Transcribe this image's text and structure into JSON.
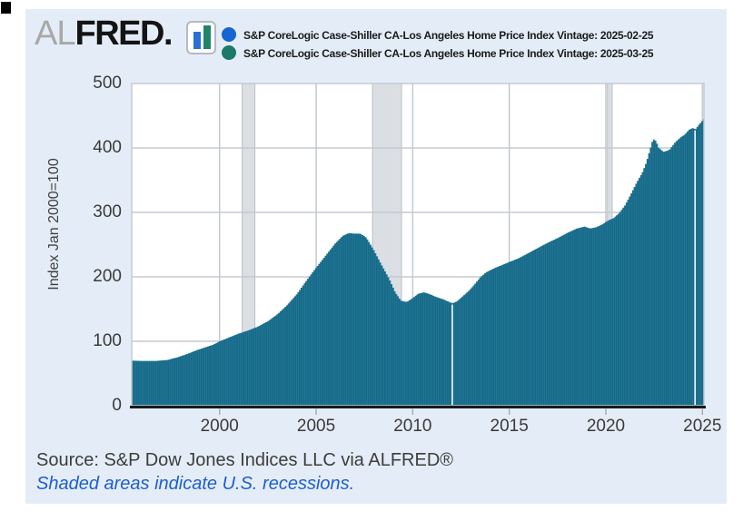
{
  "page": {
    "background": "#ffffff",
    "panel_background": "#e4edf7"
  },
  "logo": {
    "prefix": "AL",
    "main": "FRED",
    "suffix": ".",
    "icon_bars": [
      {
        "name": "blue-bar",
        "color": "#2b6fd4"
      },
      {
        "name": "green-bar",
        "color": "#208467"
      }
    ]
  },
  "legend": {
    "items": [
      {
        "marker_color": "#1565d2",
        "label": "S&P CoreLogic Case-Shiller CA-Los Angeles Home Price Index Vintage: 2025-02-25"
      },
      {
        "marker_color": "#1b7a6a",
        "label": "S&P CoreLogic Case-Shiller CA-Los Angeles Home Price Index Vintage: 2025-03-25"
      }
    ]
  },
  "footer": {
    "source": "Source: S&P Dow Jones Indices LLC via ALFRED®",
    "note": "Shaded areas indicate U.S. recessions.",
    "note_color": "#1d5ed2"
  },
  "chart_data": {
    "type": "bar",
    "title": "S&P CoreLogic Case-Shiller CA-Los Angeles Home Price Index — ALFRED vintage comparison",
    "xlabel": "",
    "ylabel": "Index Jan 2000=100",
    "ylim": [
      0,
      500
    ],
    "x_range": [
      1995.45,
      2025.08
    ],
    "y_ticks": [
      0,
      100,
      200,
      300,
      400,
      500
    ],
    "x_ticks": [
      2000,
      2005,
      2010,
      2015,
      2020,
      2025
    ],
    "grid": true,
    "legend_position": "top",
    "bar_color": "#1e7796",
    "bar_seam_color": "rgba(10,55,80,0.45)",
    "recession_band_color": "#dbdfe4",
    "recession_band_edge_color": "#bcc1c7",
    "recessions": [
      [
        2001.17,
        2001.83
      ],
      [
        2007.92,
        2009.42
      ],
      [
        2020.08,
        2020.33
      ]
    ],
    "gap_line_years": [
      2012.05,
      2024.62
    ],
    "series": [
      {
        "name": "S&P CoreLogic Case-Shiller CA-Los Angeles Home Price Index Vintage: 2025-02-25",
        "color": "#1565d2",
        "end_year": 2024.92,
        "note_visibility": "bars fully covered by the 2025-03-25 vintage in the screenshot"
      },
      {
        "name": "S&P CoreLogic Case-Shiller CA-Los Angeles Home Price Index Vintage: 2025-03-25",
        "color": "#1e7796",
        "end_year": 2025.08
      }
    ],
    "points": [
      [
        1995.5,
        70
      ],
      [
        1996.0,
        69.5
      ],
      [
        1996.7,
        69.5
      ],
      [
        1997.3,
        71
      ],
      [
        1997.8,
        75
      ],
      [
        1998.3,
        80
      ],
      [
        1998.8,
        86
      ],
      [
        1999.3,
        91
      ],
      [
        1999.7,
        95
      ],
      [
        2000.0,
        100
      ],
      [
        2000.5,
        106
      ],
      [
        2001.0,
        112
      ],
      [
        2001.5,
        117
      ],
      [
        2002.0,
        123
      ],
      [
        2002.5,
        131
      ],
      [
        2003.0,
        142
      ],
      [
        2003.5,
        156
      ],
      [
        2004.0,
        173
      ],
      [
        2004.5,
        194
      ],
      [
        2005.0,
        214
      ],
      [
        2005.5,
        233
      ],
      [
        2006.0,
        252
      ],
      [
        2006.4,
        264
      ],
      [
        2006.7,
        268
      ],
      [
        2007.0,
        267
      ],
      [
        2007.3,
        267
      ],
      [
        2007.6,
        261
      ],
      [
        2008.0,
        241
      ],
      [
        2008.4,
        218
      ],
      [
        2008.8,
        196
      ],
      [
        2009.1,
        176
      ],
      [
        2009.4,
        163
      ],
      [
        2009.7,
        161
      ],
      [
        2010.0,
        167
      ],
      [
        2010.3,
        174
      ],
      [
        2010.6,
        176
      ],
      [
        2010.9,
        173
      ],
      [
        2011.2,
        169
      ],
      [
        2011.6,
        165
      ],
      [
        2011.9,
        161
      ],
      [
        2012.05,
        159
      ],
      [
        2012.3,
        162
      ],
      [
        2012.6,
        170
      ],
      [
        2012.9,
        178
      ],
      [
        2013.2,
        188
      ],
      [
        2013.5,
        199
      ],
      [
        2013.8,
        207
      ],
      [
        2014.2,
        213
      ],
      [
        2014.6,
        218
      ],
      [
        2015.0,
        223
      ],
      [
        2015.5,
        229
      ],
      [
        2016.0,
        237
      ],
      [
        2016.5,
        245
      ],
      [
        2017.0,
        253
      ],
      [
        2017.5,
        260
      ],
      [
        2018.0,
        268
      ],
      [
        2018.5,
        275
      ],
      [
        2018.9,
        278
      ],
      [
        2019.2,
        275
      ],
      [
        2019.5,
        277
      ],
      [
        2019.8,
        281
      ],
      [
        2020.1,
        287
      ],
      [
        2020.4,
        291
      ],
      [
        2020.7,
        299
      ],
      [
        2021.0,
        311
      ],
      [
        2021.3,
        328
      ],
      [
        2021.6,
        346
      ],
      [
        2021.9,
        362
      ],
      [
        2022.1,
        377
      ],
      [
        2022.3,
        398
      ],
      [
        2022.45,
        414
      ],
      [
        2022.6,
        411
      ],
      [
        2022.75,
        400
      ],
      [
        2023.0,
        394
      ],
      [
        2023.3,
        397
      ],
      [
        2023.6,
        409
      ],
      [
        2023.9,
        417
      ],
      [
        2024.1,
        421
      ],
      [
        2024.3,
        428
      ],
      [
        2024.5,
        431
      ],
      [
        2024.65,
        429
      ],
      [
        2024.8,
        435
      ],
      [
        2025.08,
        445
      ]
    ]
  }
}
